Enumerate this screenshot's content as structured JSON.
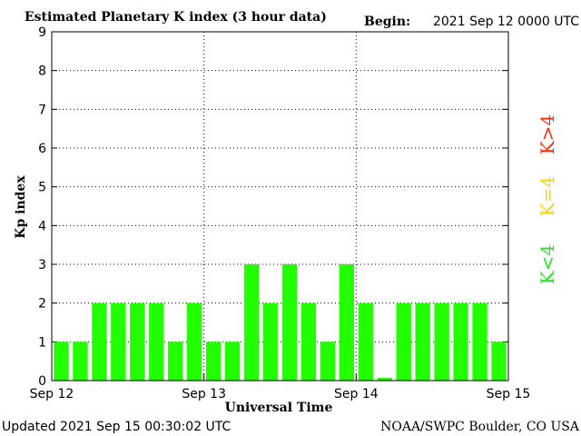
{
  "header": {
    "title": "Estimated Planetary K index (3 hour data)",
    "begin_label": "Begin:",
    "begin_value": "2021 Sep 12 0000 UTC"
  },
  "footer": {
    "updated": "Updated 2021 Sep 15 00:30:02 UTC",
    "credit": "NOAA/SWPC Boulder, CO USA"
  },
  "legend": {
    "high": {
      "label": "K>4",
      "color": "#ff2a00"
    },
    "mid": {
      "label": "K=4",
      "color": "#ffd200"
    },
    "low": {
      "label": "K<4",
      "color": "#22e622"
    }
  },
  "chart_data": {
    "type": "bar",
    "xlabel": "Universal Time",
    "ylabel": "Kp index",
    "ylim": [
      0,
      9
    ],
    "yticks": [
      "0",
      "1",
      "2",
      "3",
      "4",
      "5",
      "6",
      "7",
      "8",
      "9"
    ],
    "day_labels": [
      "Sep 12",
      "Sep 13",
      "Sep 14",
      "Sep 15"
    ],
    "interval": "3 hour",
    "values": [
      1,
      1,
      2,
      2,
      2,
      2,
      1,
      2,
      1,
      1,
      3,
      2,
      3,
      2,
      1,
      3,
      2,
      0.07,
      2,
      2,
      2,
      2,
      2,
      1
    ],
    "bar_color": "#22ff00",
    "grid": "dotted"
  }
}
